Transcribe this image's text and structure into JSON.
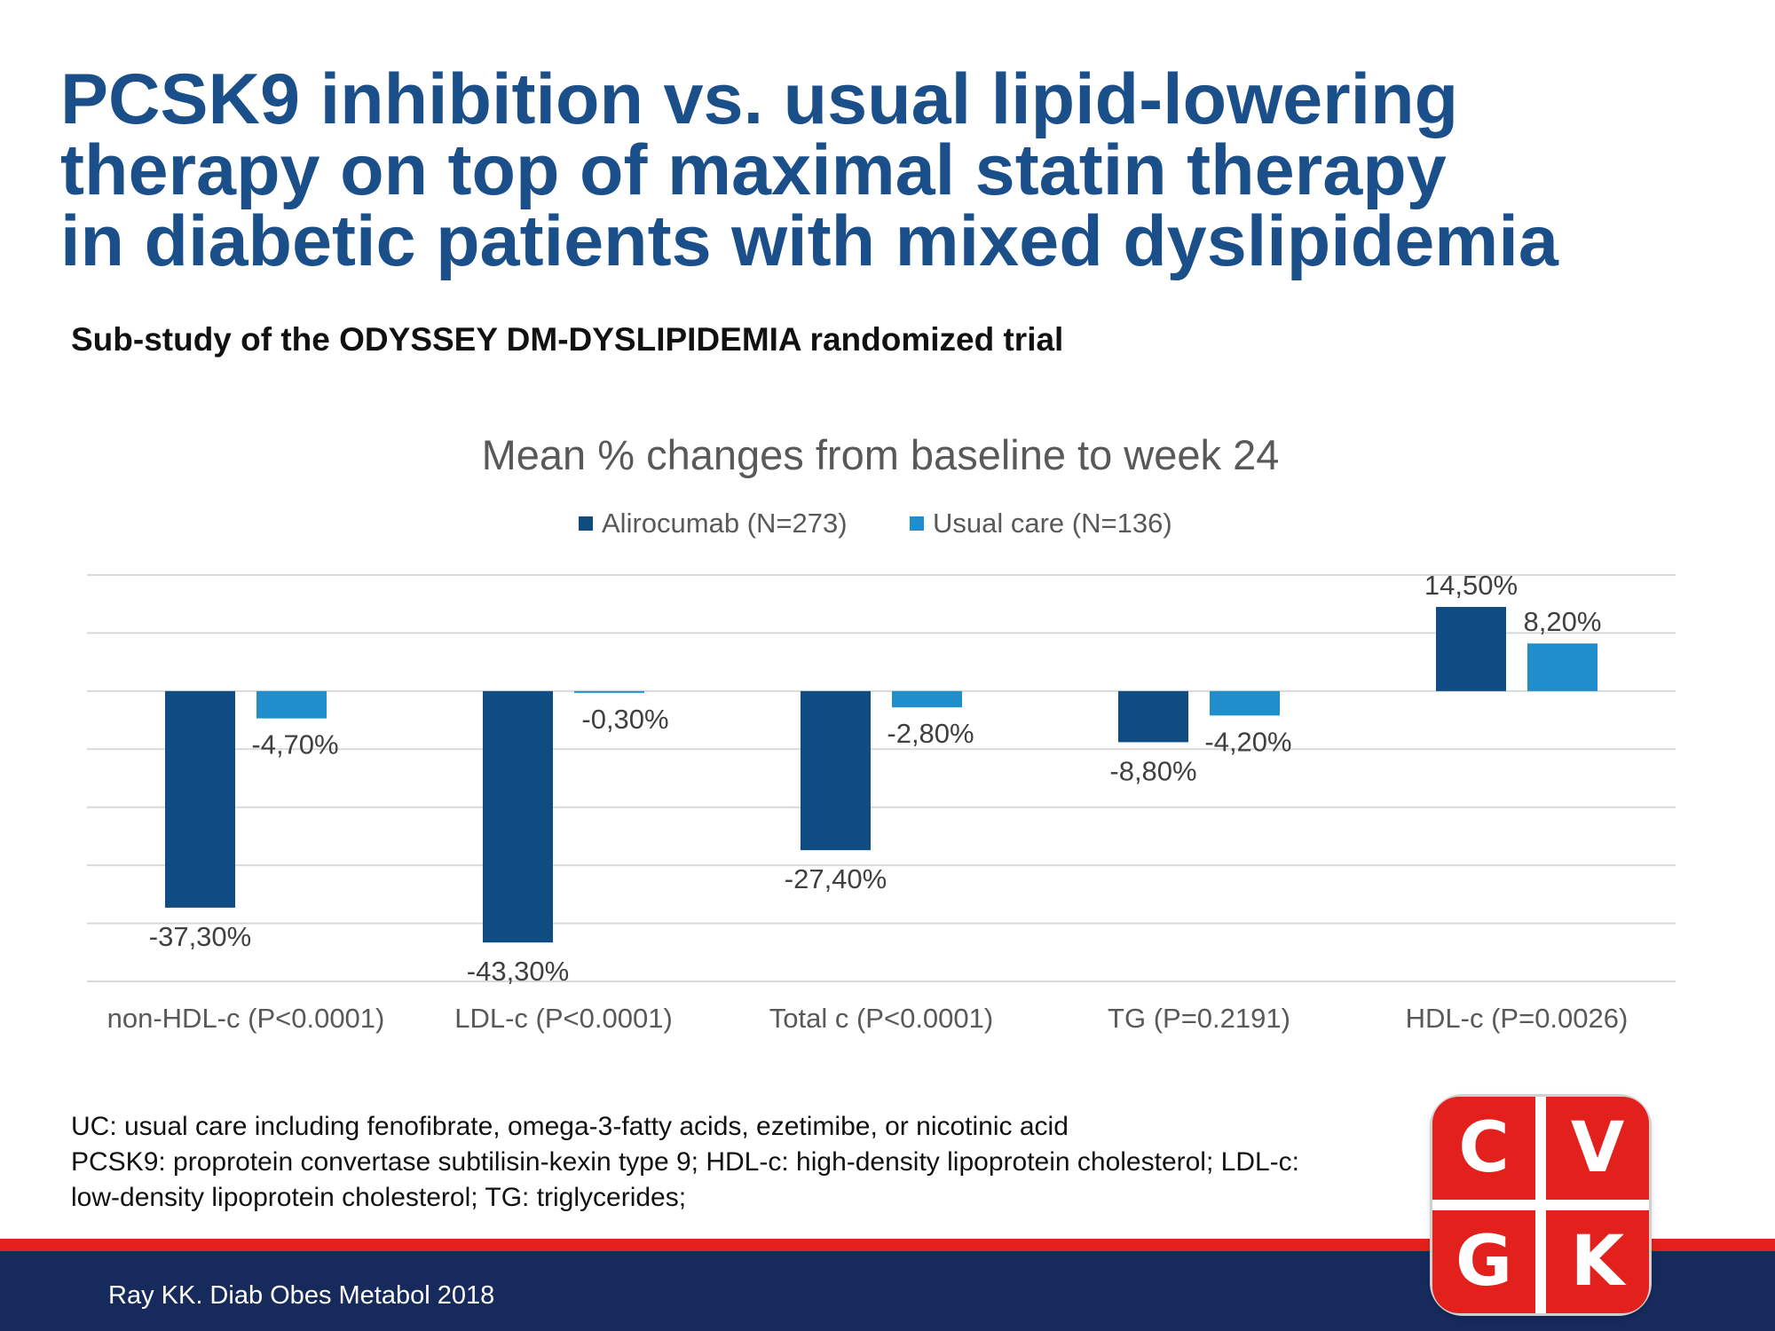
{
  "title": {
    "line1": "PCSK9 inhibition vs. usual lipid-lowering",
    "line2": "therapy on top of maximal statin therapy",
    "line3": "in diabetic patients with mixed dyslipidemia"
  },
  "subtitle": "Sub-study of the ODYSSEY DM-DYSLIPIDEMIA randomized trial",
  "colors": {
    "title": "#1b4f8a",
    "alirocumab": "#0e4c82",
    "usual_care": "#1f8ecb",
    "bottom_band": "#172a5c",
    "accent_red": "#e2211c"
  },
  "chart_data": {
    "type": "bar",
    "title": "Mean % changes from baseline to week 24",
    "categories": [
      "non-HDL-c (P<0.0001)",
      "LDL-c (P<0.0001)",
      "Total c (P<0.0001)",
      "TG (P=0.2191)",
      "HDL-c (P=0.0026)"
    ],
    "series": [
      {
        "name": "Alirocumab (N=273)",
        "values": [
          -37.3,
          -43.3,
          -27.4,
          -8.8,
          14.5
        ],
        "labels": [
          "-37,30%",
          "-43,30%",
          "-27,40%",
          "-8,80%",
          "14,50%"
        ]
      },
      {
        "name": "Usual care (N=136)",
        "values": [
          -4.7,
          -0.3,
          -2.8,
          -4.2,
          8.2
        ],
        "labels": [
          "-4,70%",
          "-0,30%",
          "-2,80%",
          "-4,20%",
          "8,20%"
        ]
      }
    ],
    "ylim": [
      -50,
      20
    ],
    "grid": true,
    "legend": "top-center",
    "xlabel": "",
    "ylabel": ""
  },
  "footnotes": [
    "UC: usual care including fenofibrate, omega-3-fatty acids, ezetimibe, or nicotinic acid",
    "PCSK9: proprotein convertase subtilisin-kexin type 9; HDL-c: high-density lipoprotein cholesterol; LDL-c:",
    "low-density lipoprotein cholesterol; TG: triglycerides;"
  ],
  "citation": "Ray KK. Diab Obes Metabol 2018",
  "logo": {
    "letters": [
      "C",
      "V",
      "G",
      "K"
    ]
  }
}
